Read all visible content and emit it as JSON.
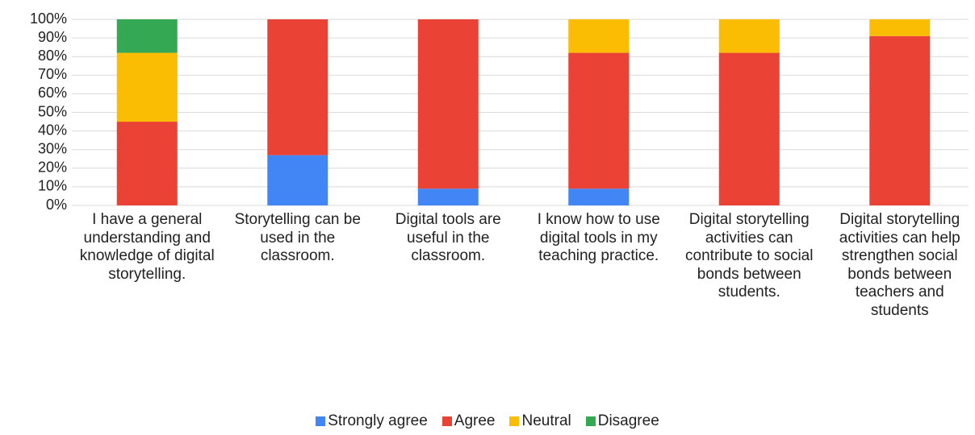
{
  "chart_data": {
    "type": "stacked_bar",
    "categories": [
      "I have a general understanding and knowledge of digital storytelling.",
      "Storytelling can be used in the classroom.",
      "Digital tools are useful in the classroom.",
      "I know how to use digital tools in my teaching practice.",
      "Digital storytelling activities can contribute to social bonds between students.",
      "Digital storytelling activities can help strengthen social bonds between teachers and students"
    ],
    "series": [
      {
        "name": "Strongly agree",
        "color": "#4285f4",
        "values": [
          0,
          27,
          9,
          9,
          0,
          0
        ]
      },
      {
        "name": "Agree",
        "color": "#ea4335",
        "values": [
          45,
          73,
          91,
          73,
          82,
          91
        ]
      },
      {
        "name": "Neutral",
        "color": "#fbbc04",
        "values": [
          37,
          0,
          0,
          18,
          18,
          9
        ]
      },
      {
        "name": "Disagree",
        "color": "#34a853",
        "values": [
          18,
          0,
          0,
          0,
          0,
          0
        ]
      }
    ],
    "ylim": [
      0,
      100
    ],
    "yticks": [
      {
        "value": 0,
        "label": "0%"
      },
      {
        "value": 10,
        "label": "10%"
      },
      {
        "value": 20,
        "label": "20%"
      },
      {
        "value": 30,
        "label": "30%"
      },
      {
        "value": 40,
        "label": "40%"
      },
      {
        "value": 50,
        "label": "50%"
      },
      {
        "value": 60,
        "label": "60%"
      },
      {
        "value": 70,
        "label": "70%"
      },
      {
        "value": 80,
        "label": "80%"
      },
      {
        "value": 90,
        "label": "90%"
      },
      {
        "value": 100,
        "label": "100%"
      }
    ],
    "grid": true,
    "legend": "bottom"
  }
}
